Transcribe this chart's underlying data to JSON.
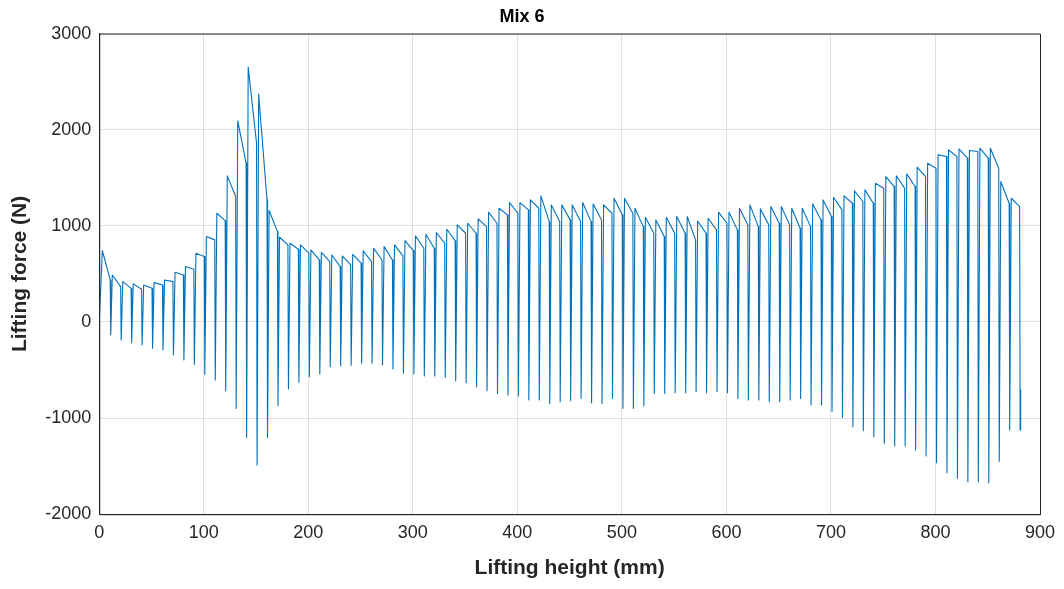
{
  "chart_data": {
    "type": "line",
    "title": "Mix 6",
    "xlabel": "Lifting height (mm)",
    "ylabel": "Lifting force (N)",
    "xlim": [
      0,
      900
    ],
    "xticks": [
      0,
      100,
      200,
      300,
      400,
      500,
      600,
      700,
      800,
      900
    ],
    "ylim": [
      -2000,
      3000
    ],
    "yticks": [
      -2000,
      -1000,
      0,
      1000,
      2000,
      3000
    ],
    "grid": true,
    "marker": "none",
    "line_style": "solid",
    "color": "#0072bd",
    "x": [
      0,
      3,
      10.5,
      11,
      12.5,
      20.5,
      21,
      22.5,
      30.5,
      31,
      32.5,
      40.5,
      41,
      42.5,
      50.5,
      51,
      52.5,
      60.5,
      61,
      62.5,
      70.5,
      71,
      72.5,
      80.5,
      81,
      82.5,
      90.5,
      91,
      92.5,
      100.5,
      101,
      102.5,
      110.5,
      111,
      112.5,
      120.5,
      121,
      122.5,
      130.5,
      131,
      132.5,
      140.5,
      141,
      142.5,
      150.5,
      151,
      152.5,
      160.5,
      161,
      162.5,
      170.5,
      171,
      172.5,
      180.5,
      181,
      182.5,
      190.5,
      191,
      192.5,
      200.5,
      201,
      202.5,
      210.5,
      211,
      212.5,
      220.5,
      221,
      222.5,
      230.5,
      231,
      232.5,
      240.5,
      241,
      242.5,
      250.5,
      251,
      252.5,
      260.5,
      261,
      262.5,
      270.5,
      271,
      272.5,
      280.5,
      281,
      282.5,
      290.5,
      291,
      292.5,
      300.5,
      301,
      302.5,
      310.5,
      311,
      312.5,
      320.5,
      321,
      322.5,
      330.5,
      331,
      332.5,
      340.5,
      341,
      342.5,
      350.5,
      351,
      352.5,
      360.5,
      361,
      362.5,
      370.5,
      371,
      372.5,
      380.5,
      381,
      382.5,
      390.5,
      391,
      392.5,
      400.5,
      401,
      402.5,
      410.5,
      411,
      412.5,
      420.5,
      421,
      422.5,
      430.5,
      431,
      432.5,
      440.5,
      441,
      442.5,
      450.5,
      451,
      452.5,
      460.5,
      461,
      462.5,
      470.5,
      471,
      472.5,
      480.5,
      481,
      482.5,
      490.5,
      491,
      492.5,
      500.5,
      501,
      502.5,
      510.5,
      511,
      512.5,
      520.5,
      521,
      522.5,
      530.5,
      531,
      532.5,
      540.5,
      541,
      542.5,
      550.5,
      551,
      552.5,
      560.5,
      561,
      562.5,
      570.5,
      571,
      572.5,
      580.5,
      581,
      582.5,
      590.5,
      591,
      592.5,
      600.5,
      601,
      602.5,
      610.5,
      611,
      612.5,
      620.5,
      621,
      622.5,
      630.5,
      631,
      632.5,
      640.5,
      641,
      642.5,
      650.5,
      651,
      652.5,
      660.5,
      661,
      662.5,
      670.5,
      671,
      672.5,
      680.5,
      681,
      682.5,
      690.5,
      691,
      692.5,
      700.5,
      701,
      702.5,
      710.5,
      711,
      712.5,
      720.5,
      721,
      722.5,
      730.5,
      731,
      732.5,
      740.5,
      741,
      742.5,
      750.5,
      751,
      752.5,
      760.5,
      761,
      762.5,
      770.5,
      771,
      772.5,
      780.5,
      781,
      782.5,
      790.5,
      791,
      792.5,
      800.5,
      801,
      802.5,
      810.5,
      811,
      812.5,
      820.5,
      821,
      822.5,
      830.5,
      831,
      832.5,
      840.5,
      841,
      842.5,
      850.5,
      851,
      852.5,
      860.5,
      861,
      862.5,
      870.5,
      871,
      872.5,
      880.5,
      881,
      881.5
    ],
    "values": [
      0,
      743,
      437,
      -135,
      489,
      368,
      -187,
      420,
      350,
      -215,
      396,
      340,
      -240,
      385,
      350,
      -274,
      409,
      385,
      -291,
      437,
      420,
      -343,
      517,
      489,
      -396,
      576,
      548,
      -441,
      715,
      680,
      -545,
      888,
      854,
      -604,
      1131,
      1055,
      -715,
      1520,
      1305,
      -899,
      2092,
      1652,
      -1201,
      2651,
      1860,
      -1489,
      2370,
      1270,
      -1201,
      1159,
      940,
      -871,
      881,
      802,
      -697,
      819,
      756,
      -628,
      802,
      715,
      -569,
      750,
      645,
      -541,
      725,
      628,
      -465,
      697,
      576,
      -458,
      687,
      593,
      -451,
      704,
      611,
      -430,
      739,
      628,
      -430,
      767,
      645,
      -448,
      784,
      645,
      -489,
      802,
      687,
      -534,
      847,
      743,
      -541,
      895,
      767,
      -562,
      913,
      767,
      -562,
      930,
      819,
      -576,
      965,
      843,
      -611,
      1010,
      923,
      -632,
      1027,
      923,
      -673,
      1072,
      992,
      -715,
      1142,
      1027,
      -743,
      1183,
      1114,
      -760,
      1242,
      1131,
      -770,
      1242,
      1166,
      -812,
      1270,
      1183,
      -812,
      1312,
      1044,
      -847,
      1218,
      1044,
      -829,
      1218,
      1062,
      -819,
      1218,
      1044,
      -795,
      1242,
      1044,
      -840,
      1228,
      1062,
      -847,
      1218,
      1131,
      -795,
      1287,
      1114,
      -899,
      1287,
      1131,
      -899,
      1183,
      992,
      -874,
      1090,
      923,
      -743,
      1062,
      888,
      -743,
      1090,
      923,
      -736,
      1097,
      923,
      -736,
      1097,
      854,
      -725,
      1051,
      923,
      -736,
      1079,
      958,
      -725,
      1142,
      1027,
      -736,
      1142,
      958,
      -795,
      1183,
      1010,
      -812,
      1218,
      992,
      -812,
      1176,
      1010,
      -829,
      1201,
      1027,
      -829,
      1201,
      1010,
      -812,
      1183,
      975,
      -795,
      1183,
      992,
      -864,
      1228,
      1062,
      -864,
      1270,
      1097,
      -930,
      1298,
      1166,
      -992,
      1312,
      1235,
      -1090,
      1364,
      1253,
      -1131,
      1374,
      1235,
      -1194,
      1443,
      1391,
      -1263,
      1513,
      1409,
      -1291,
      1520,
      1391,
      -1291,
      1541,
      1409,
      -1332,
      1610,
      1513,
      -1395,
      1652,
      1600,
      -1464,
      1738,
      1721,
      -1568,
      1790,
      1721,
      -1627,
      1801,
      1704,
      -1662,
      1784,
      1773,
      -1662,
      1808,
      1704,
      -1673,
      1808,
      1600,
      -1450,
      1461,
      1235,
      -1124,
      1287,
      1201,
      -1124,
      -700
    ]
  }
}
